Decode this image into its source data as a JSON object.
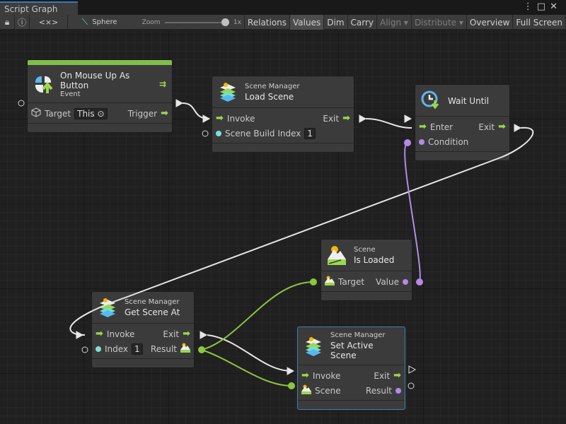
{
  "window": {
    "title": "Script Graph",
    "controls": [
      "⋮",
      "□",
      "✕"
    ]
  },
  "toolbar": {
    "lock_icon": "lock-icon",
    "info_icon": "info-icon",
    "code": "<×>",
    "target": "Sphere",
    "zoom_label": "Zoom",
    "zoom_value": "1x",
    "zoom_level": 1.0,
    "buttons": [
      {
        "label": "Relations",
        "active": false,
        "disabled": false
      },
      {
        "label": "Values",
        "active": true,
        "disabled": false
      },
      {
        "label": "Dim",
        "active": false,
        "disabled": false
      },
      {
        "label": "Carry",
        "active": false,
        "disabled": false
      },
      {
        "label": "Align ▾",
        "active": false,
        "disabled": true
      },
      {
        "label": "Distribute ▾",
        "active": false,
        "disabled": true
      },
      {
        "label": "Overview",
        "active": false,
        "disabled": false
      },
      {
        "label": "Full Screen",
        "active": false,
        "disabled": false
      }
    ]
  },
  "colors": {
    "flow": "#9ad94c",
    "object": "#7ee0d8",
    "bool": "#b48ae8",
    "scene": "#8cc63f",
    "selected": "#3d7fae",
    "event_bar": "#7fbf4a"
  },
  "nodes": [
    {
      "id": "event",
      "subtitle": "Event",
      "title": "On Mouse Up As Button",
      "icon": "mouse-up-icon",
      "event": true,
      "rows": [
        {
          "left": {
            "icon": "cube",
            "label": "Target",
            "inline": "This ⊙"
          },
          "right": {
            "label": "Trigger",
            "port": "flow"
          }
        }
      ]
    },
    {
      "id": "load",
      "subtitle": "Scene Manager",
      "title": "Load Scene",
      "icon": "scene-manager-icon",
      "rows": [
        {
          "left": {
            "port": "flow",
            "label": "Invoke"
          },
          "right": {
            "label": "Exit",
            "port": "flow"
          }
        },
        {
          "left": {
            "port": "object",
            "label": "Scene Build Index",
            "inline": "1"
          }
        }
      ]
    },
    {
      "id": "wait",
      "subtitle": "",
      "title": "Wait Until",
      "icon": "clock-icon",
      "rows": [
        {
          "left": {
            "port": "flow",
            "label": "Enter"
          },
          "right": {
            "label": "Exit",
            "port": "flow"
          }
        },
        {
          "left": {
            "port": "bool",
            "label": "Condition"
          }
        }
      ]
    },
    {
      "id": "isloaded",
      "subtitle": "Scene",
      "title": "Is Loaded",
      "icon": "scene-icon",
      "rows": [
        {
          "left": {
            "icon": "scene",
            "label": "Target"
          },
          "right": {
            "label": "Value",
            "port": "bool"
          }
        }
      ]
    },
    {
      "id": "getat",
      "subtitle": "Scene Manager",
      "title": "Get Scene At",
      "icon": "scene-manager-icon",
      "rows": [
        {
          "left": {
            "port": "flow",
            "label": "Invoke"
          },
          "right": {
            "label": "Exit",
            "port": "flow"
          }
        },
        {
          "left": {
            "port": "object",
            "label": "Index",
            "inline": "1"
          },
          "right": {
            "label": "Result",
            "icon": "scene"
          }
        }
      ]
    },
    {
      "id": "setactive",
      "subtitle": "Scene Manager",
      "title": "Set Active Scene",
      "icon": "scene-manager-icon",
      "selected": true,
      "rows": [
        {
          "left": {
            "port": "flow",
            "label": "Invoke"
          },
          "right": {
            "label": "Exit",
            "port": "flow"
          }
        },
        {
          "left": {
            "icon": "scene",
            "label": "Scene"
          },
          "right": {
            "label": "Result",
            "port": "bool"
          }
        }
      ]
    }
  ]
}
